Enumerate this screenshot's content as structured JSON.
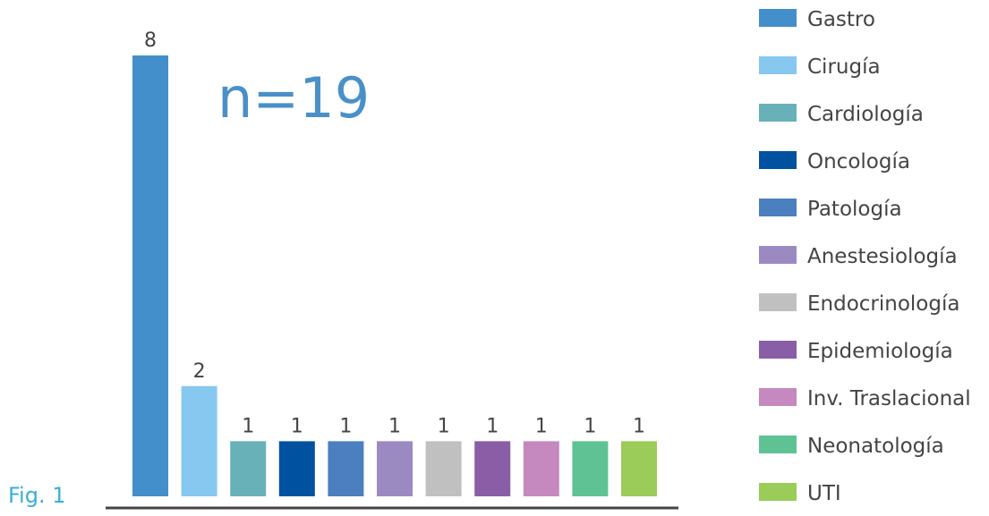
{
  "figure_label": "Fig. 1",
  "annotation": "n=19",
  "chart_data": {
    "type": "bar",
    "title": "",
    "xlabel": "",
    "ylabel": "",
    "categories": [
      "Gastro",
      "Cirugía",
      "Cardiología",
      "Oncología",
      "Patología",
      "Anestesiología",
      "Endocrinología",
      "Epidemiología",
      "Inv. Traslacional",
      "Neonatología",
      "UTI"
    ],
    "values": [
      8,
      2,
      1,
      1,
      1,
      1,
      1,
      1,
      1,
      1,
      1
    ],
    "colors": [
      "#428fcb",
      "#86c8f0",
      "#68b1b9",
      "#0052a0",
      "#4b7fc0",
      "#9b8ac1",
      "#c0c0c0",
      "#8a5ea7",
      "#c589c0",
      "#5ec295",
      "#9bcb58"
    ],
    "ylim": [
      0,
      8
    ],
    "grid": false,
    "legend_position": "right",
    "data_labels": true
  }
}
